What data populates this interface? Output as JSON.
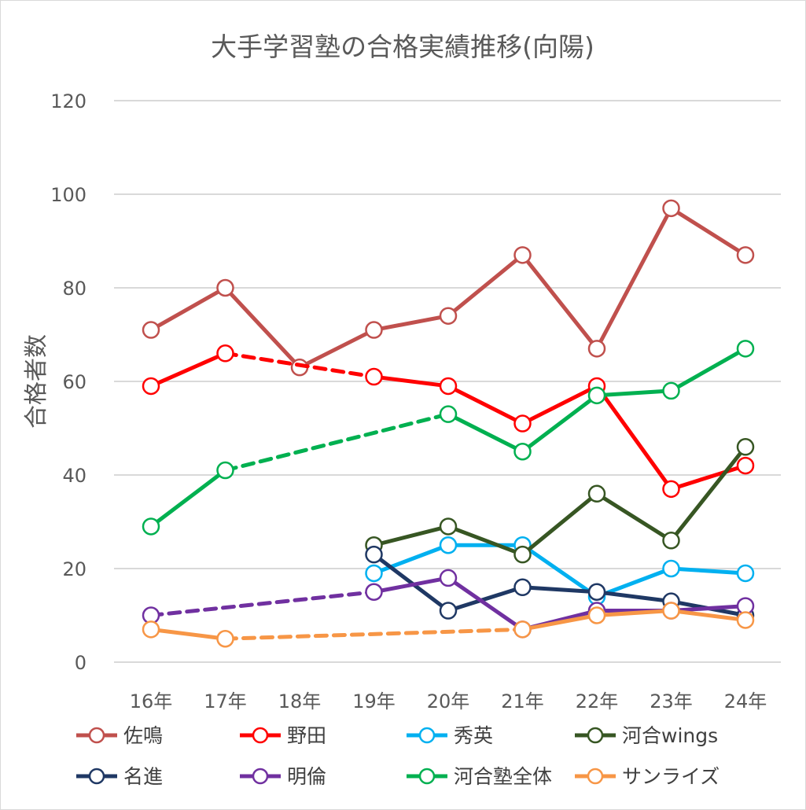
{
  "chart_data": {
    "type": "line",
    "title": "大手学習塾の合格実績推移(向陽)",
    "xlabel": "",
    "ylabel": "合格者数",
    "ylim": [
      0,
      120
    ],
    "yticks": [
      0,
      20,
      40,
      60,
      80,
      100,
      120
    ],
    "categories": [
      "16年",
      "17年",
      "18年",
      "19年",
      "20年",
      "21年",
      "22年",
      "23年",
      "24年"
    ],
    "grid": true,
    "legend_position": "bottom",
    "series": [
      {
        "name": "佐鳴",
        "color": "#c0504d",
        "values": [
          71,
          80,
          63,
          71,
          74,
          87,
          67,
          97,
          87
        ]
      },
      {
        "name": "野田",
        "color": "#ff0000",
        "values": [
          59,
          66,
          null,
          61,
          59,
          51,
          59,
          37,
          42
        ]
      },
      {
        "name": "秀英",
        "color": "#00b0f0",
        "values": [
          null,
          null,
          null,
          19,
          25,
          25,
          14,
          20,
          19
        ]
      },
      {
        "name": "河合wings",
        "color": "#375623",
        "values": [
          null,
          null,
          null,
          25,
          29,
          23,
          36,
          26,
          46
        ]
      },
      {
        "name": "名進",
        "color": "#1f3864",
        "values": [
          null,
          null,
          null,
          23,
          11,
          16,
          15,
          13,
          10
        ]
      },
      {
        "name": "明倫",
        "color": "#7030a0",
        "values": [
          10,
          null,
          null,
          15,
          18,
          7,
          11,
          11,
          12
        ]
      },
      {
        "name": "河合塾全体",
        "color": "#00b050",
        "values": [
          29,
          41,
          null,
          null,
          53,
          45,
          57,
          58,
          67
        ]
      },
      {
        "name": "サンライズ",
        "color": "#f79646",
        "values": [
          7,
          5,
          null,
          null,
          null,
          7,
          10,
          11,
          9
        ]
      }
    ]
  }
}
